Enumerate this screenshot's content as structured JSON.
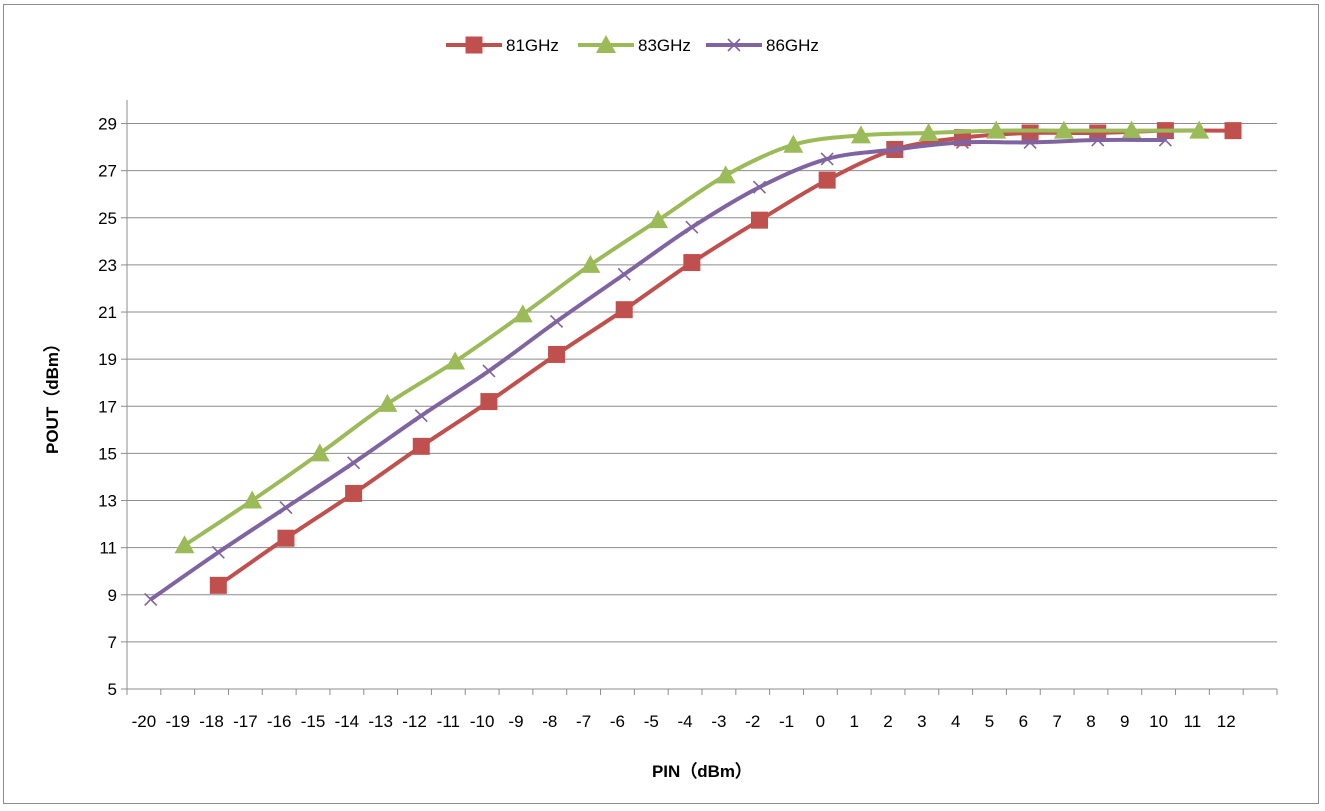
{
  "chart_data": {
    "type": "line",
    "xlabel": "PIN（dBm）",
    "ylabel": "POUT（dBm）",
    "ylim": [
      5,
      30
    ],
    "y_ticks": [
      5,
      7,
      9,
      11,
      13,
      15,
      17,
      19,
      21,
      23,
      25,
      27,
      29
    ],
    "x_categories": [
      "-20",
      "-19",
      "-18",
      "-17",
      "-16",
      "-15",
      "-14",
      "-13",
      "-12",
      "-11",
      "-10",
      "-9",
      "-8",
      "-7",
      "-6",
      "-5",
      "-4",
      "-3",
      "-2",
      "-1",
      "0",
      "1",
      "2",
      "3",
      "4",
      "5",
      "6",
      "7",
      "8",
      "9",
      "10",
      "11",
      "12"
    ],
    "grid": "horizontal",
    "legend_position": "top",
    "series": [
      {
        "name": "81GHz",
        "color": "#c0504d",
        "marker": "square",
        "points": [
          [
            -18.3,
            9.4
          ],
          [
            -16.3,
            11.4
          ],
          [
            -14.3,
            13.3
          ],
          [
            -12.3,
            15.3
          ],
          [
            -10.3,
            17.2
          ],
          [
            -8.3,
            19.2
          ],
          [
            -6.3,
            21.1
          ],
          [
            -4.3,
            23.1
          ],
          [
            -2.3,
            24.9
          ],
          [
            -0.3,
            26.6
          ],
          [
            1.7,
            27.9
          ],
          [
            3.7,
            28.4
          ],
          [
            5.7,
            28.6
          ],
          [
            7.7,
            28.6
          ],
          [
            9.7,
            28.7
          ],
          [
            11.7,
            28.7
          ]
        ]
      },
      {
        "name": "83GHz",
        "color": "#9bbb59",
        "marker": "triangle",
        "points": [
          [
            -19.3,
            11.1
          ],
          [
            -17.3,
            13.0
          ],
          [
            -15.3,
            15.0
          ],
          [
            -13.3,
            17.1
          ],
          [
            -11.3,
            18.9
          ],
          [
            -9.3,
            20.9
          ],
          [
            -7.3,
            23.0
          ],
          [
            -5.3,
            24.9
          ],
          [
            -3.3,
            26.8
          ],
          [
            -1.3,
            28.1
          ],
          [
            0.7,
            28.5
          ],
          [
            2.7,
            28.6
          ],
          [
            4.7,
            28.7
          ],
          [
            6.7,
            28.7
          ],
          [
            8.7,
            28.7
          ],
          [
            10.7,
            28.7
          ]
        ]
      },
      {
        "name": "86GHz",
        "color": "#8064a2",
        "marker": "x",
        "points": [
          [
            -20.3,
            8.8
          ],
          [
            -18.3,
            10.8
          ],
          [
            -16.3,
            12.7
          ],
          [
            -14.3,
            14.6
          ],
          [
            -12.3,
            16.6
          ],
          [
            -10.3,
            18.5
          ],
          [
            -8.3,
            20.6
          ],
          [
            -6.3,
            22.6
          ],
          [
            -4.3,
            24.6
          ],
          [
            -2.3,
            26.3
          ],
          [
            -0.3,
            27.5
          ],
          [
            1.7,
            27.9
          ],
          [
            3.7,
            28.2
          ],
          [
            5.7,
            28.2
          ],
          [
            7.7,
            28.3
          ],
          [
            9.7,
            28.3
          ]
        ]
      }
    ]
  }
}
